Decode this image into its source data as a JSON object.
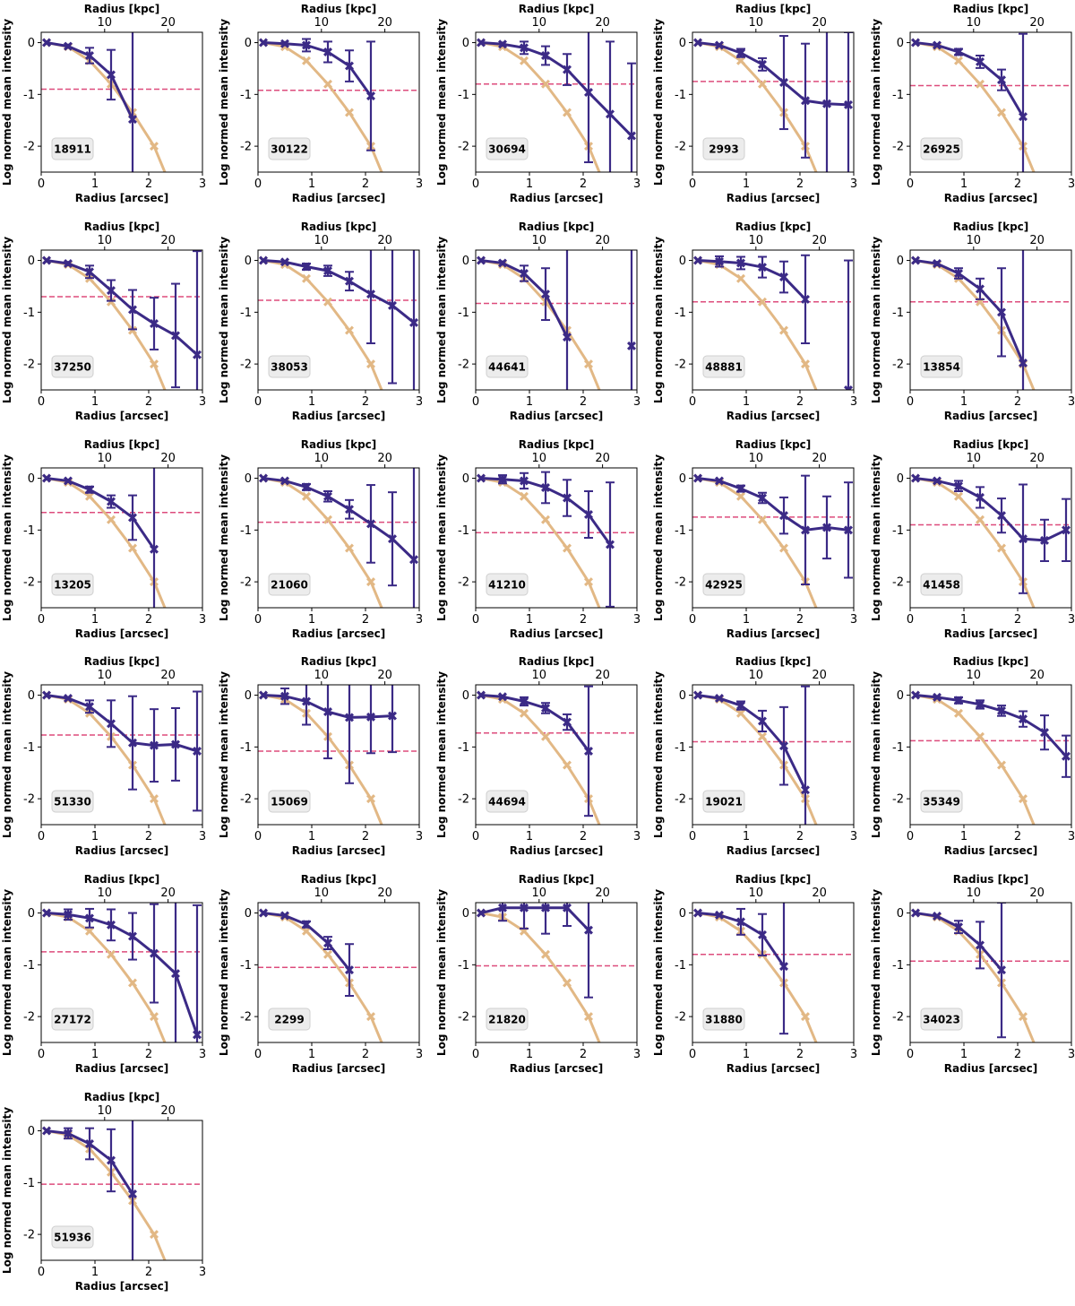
{
  "figure": {
    "xlabel_bottom": "Radius [arcsec]",
    "xlabel_top": "Radius [kpc]",
    "ylabel": "Log normed mean intensity",
    "colors": {
      "galaxy": "#3b2a86",
      "psf": "#e2b885",
      "threshold": "#dd4c7c",
      "frame": "#000000",
      "label_box": "#ececec"
    },
    "line_styles": {
      "psf": "solid",
      "galaxy": "solid",
      "threshold": "dashed"
    }
  },
  "chart_data": {
    "type": "line",
    "xlim": [
      0,
      3
    ],
    "ylim": [
      -2.5,
      0.2
    ],
    "x_ticks": [
      "0",
      "1",
      "2",
      "3"
    ],
    "y_ticks": [
      "0",
      "-1",
      "-2"
    ],
    "x_ticks_values": [
      0,
      1,
      2,
      3
    ],
    "y_ticks_values": [
      0,
      -1,
      -2
    ],
    "kpc_ticks": [
      "10",
      "20"
    ],
    "kpc_ticks_x": [
      1.18,
      2.36
    ],
    "radii_arcsec": [
      0.1,
      0.5,
      0.9,
      1.3,
      1.7,
      2.1,
      2.5,
      2.9
    ],
    "psf_profile": [
      0,
      -0.08,
      -0.35,
      -0.8,
      -1.35,
      -2.0,
      -3.0,
      -4.0
    ],
    "panels": [
      {
        "id": "18911",
        "threshold": -0.9,
        "galaxy": [
          0,
          -0.07,
          -0.25,
          -0.62,
          -1.48
        ],
        "errors": [
          0.02,
          0.05,
          0.15,
          0.48,
          2.5
        ]
      },
      {
        "id": "30122",
        "threshold": -0.92,
        "galaxy": [
          0,
          -0.02,
          -0.05,
          -0.18,
          -0.45,
          -1.03
        ],
        "errors": [
          0.02,
          0.05,
          0.12,
          0.2,
          0.3,
          1.05
        ]
      },
      {
        "id": "30694",
        "threshold": -0.8,
        "galaxy": [
          0,
          -0.03,
          -0.1,
          -0.25,
          -0.52,
          -0.96,
          -1.38,
          -1.8
        ],
        "errors": [
          0.02,
          0.05,
          0.12,
          0.18,
          0.3,
          1.35,
          1.4,
          1.4
        ]
      },
      {
        "id": "2993",
        "threshold": -0.75,
        "galaxy": [
          0,
          -0.05,
          -0.2,
          -0.42,
          -0.77,
          -1.12,
          -1.18,
          -1.2
        ],
        "errors": [
          0.02,
          0.04,
          0.08,
          0.12,
          0.9,
          1.1,
          1.4,
          1.4
        ]
      },
      {
        "id": "26925",
        "threshold": -0.83,
        "galaxy": [
          0,
          -0.05,
          -0.18,
          -0.37,
          -0.72,
          -1.43
        ],
        "errors": [
          0.02,
          0.04,
          0.06,
          0.12,
          0.2,
          1.6
        ]
      },
      {
        "id": "37250",
        "threshold": -0.7,
        "galaxy": [
          0,
          -0.06,
          -0.22,
          -0.58,
          -0.95,
          -1.22,
          -1.45,
          -1.82
        ],
        "errors": [
          0.02,
          0.05,
          0.12,
          0.2,
          0.38,
          0.5,
          1.0,
          2.0
        ]
      },
      {
        "id": "38053",
        "threshold": -0.77,
        "galaxy": [
          0,
          -0.03,
          -0.12,
          -0.2,
          -0.4,
          -0.65,
          -0.87,
          -1.2
        ],
        "errors": [
          0.02,
          0.04,
          0.06,
          0.1,
          0.18,
          0.95,
          1.5,
          1.9
        ]
      },
      {
        "id": "44641",
        "threshold": -0.83,
        "galaxy": [
          0,
          -0.05,
          -0.25,
          -0.65,
          -1.48,
          null,
          null,
          -1.65
        ],
        "errors": [
          0.02,
          0.05,
          0.15,
          0.5,
          2.0,
          null,
          null,
          2.0
        ]
      },
      {
        "id": "48881",
        "threshold": -0.8,
        "galaxy": [
          0,
          -0.02,
          -0.05,
          -0.13,
          -0.32,
          -0.75,
          null,
          -2.5
        ],
        "errors": [
          0.02,
          0.1,
          0.12,
          0.2,
          0.3,
          0.85,
          null,
          2.5
        ]
      },
      {
        "id": "13854",
        "threshold": -0.8,
        "galaxy": [
          0,
          -0.06,
          -0.25,
          -0.55,
          -1.0,
          -1.98
        ],
        "errors": [
          0.02,
          0.05,
          0.1,
          0.2,
          0.85,
          2.2
        ]
      },
      {
        "id": "13205",
        "threshold": -0.66,
        "galaxy": [
          0,
          -0.05,
          -0.22,
          -0.45,
          -0.76,
          -1.37
        ],
        "errors": [
          0.02,
          0.04,
          0.06,
          0.12,
          0.43,
          1.6
        ]
      },
      {
        "id": "21060",
        "threshold": -0.85,
        "galaxy": [
          0,
          -0.05,
          -0.17,
          -0.35,
          -0.6,
          -0.88,
          -1.17,
          -1.57
        ],
        "errors": [
          0.02,
          0.04,
          0.06,
          0.1,
          0.18,
          0.75,
          0.9,
          1.8
        ]
      },
      {
        "id": "41210",
        "threshold": -1.05,
        "galaxy": [
          0,
          -0.02,
          -0.05,
          -0.18,
          -0.38,
          -0.7,
          -1.28
        ],
        "errors": [
          0.02,
          0.08,
          0.15,
          0.3,
          0.35,
          0.45,
          1.2
        ]
      },
      {
        "id": "42925",
        "threshold": -0.75,
        "galaxy": [
          0,
          -0.05,
          -0.2,
          -0.38,
          -0.72,
          -1.0,
          -0.95,
          -1.0
        ],
        "errors": [
          0.02,
          0.04,
          0.06,
          0.1,
          0.35,
          1.05,
          0.6,
          0.92
        ]
      },
      {
        "id": "41458",
        "threshold": -0.9,
        "galaxy": [
          0,
          -0.05,
          -0.15,
          -0.37,
          -0.72,
          -1.17,
          -1.2,
          -1.0
        ],
        "errors": [
          0.02,
          0.04,
          0.1,
          0.2,
          0.33,
          1.05,
          0.4,
          0.6
        ]
      },
      {
        "id": "51330",
        "threshold": -0.77,
        "galaxy": [
          0,
          -0.06,
          -0.22,
          -0.55,
          -0.92,
          -0.97,
          -0.95,
          -1.08
        ],
        "errors": [
          0.02,
          0.04,
          0.12,
          0.45,
          0.9,
          0.7,
          0.7,
          1.15
        ]
      },
      {
        "id": "15069",
        "threshold": -1.08,
        "galaxy": [
          0,
          -0.02,
          -0.12,
          -0.32,
          -0.43,
          -0.42,
          -0.4
        ],
        "errors": [
          0.02,
          0.15,
          0.45,
          0.9,
          1.27,
          0.7,
          0.7
        ]
      },
      {
        "id": "44694",
        "threshold": -0.73,
        "galaxy": [
          0,
          -0.03,
          -0.12,
          -0.25,
          -0.52,
          -1.08
        ],
        "errors": [
          0.02,
          0.04,
          0.08,
          0.1,
          0.15,
          1.25
        ]
      },
      {
        "id": "19021",
        "threshold": -0.9,
        "galaxy": [
          0,
          -0.06,
          -0.2,
          -0.5,
          -0.98,
          -1.83
        ],
        "errors": [
          0.02,
          0.04,
          0.08,
          0.2,
          0.75,
          2.0
        ]
      },
      {
        "id": "35349",
        "threshold": -0.88,
        "galaxy": [
          0,
          -0.04,
          -0.1,
          -0.18,
          -0.3,
          -0.46,
          -0.72,
          -1.18
        ],
        "errors": [
          0.02,
          0.04,
          0.06,
          0.08,
          0.1,
          0.15,
          0.33,
          0.4
        ]
      },
      {
        "id": "27172",
        "threshold": -0.75,
        "galaxy": [
          0,
          -0.03,
          -0.1,
          -0.23,
          -0.45,
          -0.78,
          -1.17,
          -2.35
        ],
        "errors": [
          0.02,
          0.1,
          0.18,
          0.3,
          0.45,
          0.95,
          1.5,
          2.5
        ]
      },
      {
        "id": "2299",
        "threshold": -1.05,
        "galaxy": [
          0,
          -0.05,
          -0.22,
          -0.58,
          -1.1
        ],
        "errors": [
          0.02,
          0.04,
          0.06,
          0.12,
          0.5
        ]
      },
      {
        "id": "21820",
        "threshold": -1.02,
        "galaxy": [
          0,
          0.1,
          0.1,
          0.1,
          0.1,
          -0.33
        ],
        "errors": [
          0.02,
          0.25,
          0.4,
          0.5,
          0.35,
          1.3
        ]
      },
      {
        "id": "31880",
        "threshold": -0.8,
        "galaxy": [
          0,
          -0.04,
          -0.17,
          -0.42,
          -1.03
        ],
        "errors": [
          0.02,
          0.04,
          0.25,
          0.4,
          1.3
        ]
      },
      {
        "id": "34023",
        "threshold": -0.93,
        "galaxy": [
          0,
          -0.06,
          -0.27,
          -0.62,
          -1.1
        ],
        "errors": [
          0.02,
          0.04,
          0.12,
          0.45,
          1.3
        ]
      },
      {
        "id": "51936",
        "threshold": -1.03,
        "galaxy": [
          0,
          -0.05,
          -0.25,
          -0.57,
          -1.22
        ],
        "errors": [
          0.02,
          0.1,
          0.3,
          0.6,
          2.5
        ]
      }
    ]
  }
}
